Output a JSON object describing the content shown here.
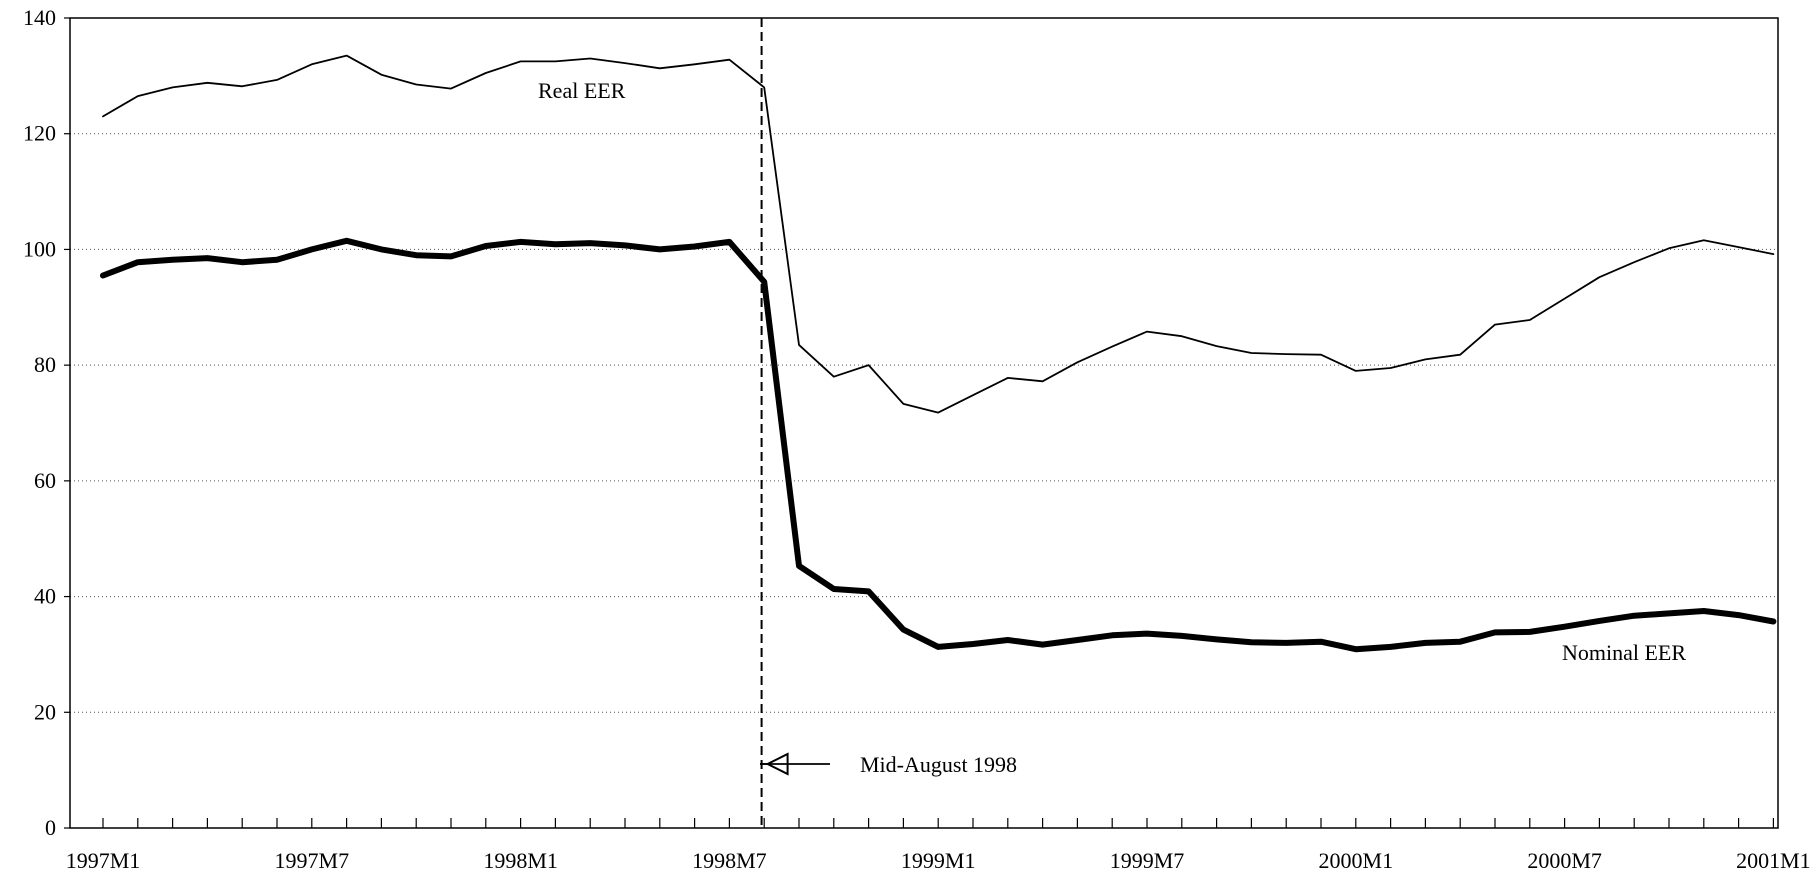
{
  "chart_data": {
    "type": "line",
    "title": "",
    "xlabel": "",
    "ylabel": "",
    "ylim": [
      0,
      140
    ],
    "yticks": [
      0,
      20,
      40,
      60,
      80,
      100,
      120,
      140
    ],
    "x_tick_labels": [
      "1997M1",
      "1997M7",
      "1998M1",
      "1998M7",
      "1999M1",
      "1999M7",
      "2000M1",
      "2000M7",
      "2001M1"
    ],
    "grid": "horizontal dotted",
    "legend": "none",
    "x": [
      "1997M1",
      "1997M2",
      "1997M3",
      "1997M4",
      "1997M5",
      "1997M6",
      "1997M7",
      "1997M8",
      "1997M9",
      "1997M10",
      "1997M11",
      "1997M12",
      "1998M1",
      "1998M2",
      "1998M3",
      "1998M4",
      "1998M5",
      "1998M6",
      "1998M7",
      "1998M8",
      "1998M9",
      "1998M10",
      "1998M11",
      "1998M12",
      "1999M1",
      "1999M2",
      "1999M3",
      "1999M4",
      "1999M5",
      "1999M6",
      "1999M7",
      "1999M8",
      "1999M9",
      "1999M10",
      "1999M11",
      "1999M12",
      "2000M1",
      "2000M2",
      "2000M3",
      "2000M4",
      "2000M5",
      "2000M6",
      "2000M7",
      "2000M8",
      "2000M9",
      "2000M10",
      "2000M11",
      "2000M12",
      "2001M1"
    ],
    "series": [
      {
        "name": "Real EER",
        "values": [
          123.0,
          126.5,
          128.0,
          128.8,
          128.2,
          129.3,
          132.0,
          133.5,
          130.2,
          128.5,
          127.8,
          130.5,
          132.5,
          132.5,
          133.0,
          132.2,
          131.3,
          132.0,
          132.8,
          128.0,
          83.5,
          78.0,
          80.0,
          73.3,
          71.8,
          74.8,
          77.8,
          77.2,
          80.5,
          83.2,
          85.8,
          85.0,
          83.3,
          82.1,
          81.9,
          81.8,
          79.0,
          79.5,
          81.0,
          81.8,
          87.0,
          87.8,
          91.5,
          95.2,
          97.8,
          100.2,
          101.6,
          100.4,
          99.2
        ],
        "color": "#000000",
        "weight": "thin"
      },
      {
        "name": "Nominal EER",
        "values": [
          95.5,
          97.8,
          98.2,
          98.5,
          97.8,
          98.2,
          100.0,
          101.5,
          100.0,
          99.0,
          98.8,
          100.6,
          101.3,
          100.9,
          101.1,
          100.7,
          100.0,
          100.5,
          101.3,
          94.4,
          45.3,
          41.3,
          40.9,
          34.3,
          31.3,
          31.8,
          32.5,
          31.7,
          32.5,
          33.3,
          33.6,
          33.2,
          32.6,
          32.1,
          32.0,
          32.2,
          30.9,
          31.3,
          32.0,
          32.2,
          33.8,
          33.9,
          34.8,
          35.8,
          36.7,
          37.1,
          37.5,
          36.8,
          35.7
        ],
        "color": "#000000",
        "weight": "thick"
      }
    ],
    "annotations": {
      "real_label": "Real EER",
      "nominal_label": "Nominal EER",
      "event_label": "Mid-August 1998",
      "event_x": "1998M8"
    }
  }
}
